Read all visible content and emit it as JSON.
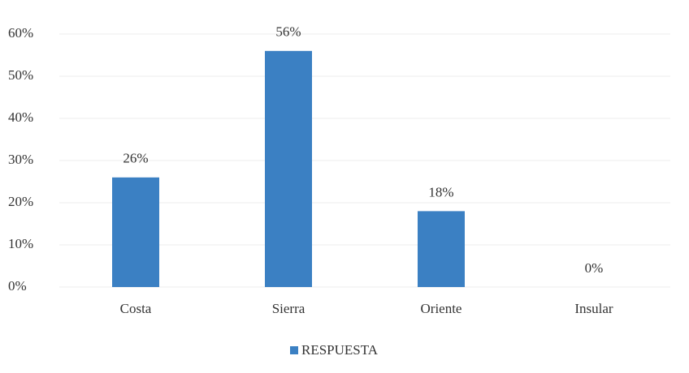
{
  "chart_data": {
    "type": "bar",
    "categories": [
      "Costa",
      "Sierra",
      "Oriente",
      "Insular"
    ],
    "series": [
      {
        "name": "RESPUESTA",
        "color": "#3b80c3",
        "values": [
          26,
          56,
          18,
          0
        ],
        "value_labels": [
          "26%",
          "56%",
          "18%",
          "0%"
        ]
      }
    ],
    "ylim": [
      0,
      60
    ],
    "yticks": [
      {
        "value": 0,
        "label": "0%"
      },
      {
        "value": 10,
        "label": "10%"
      },
      {
        "value": 20,
        "label": "20%"
      },
      {
        "value": 30,
        "label": "30%"
      },
      {
        "value": 40,
        "label": "40%"
      },
      {
        "value": 50,
        "label": "50%"
      },
      {
        "value": 60,
        "label": "60%"
      }
    ],
    "grid": true,
    "legend": "bottom"
  }
}
